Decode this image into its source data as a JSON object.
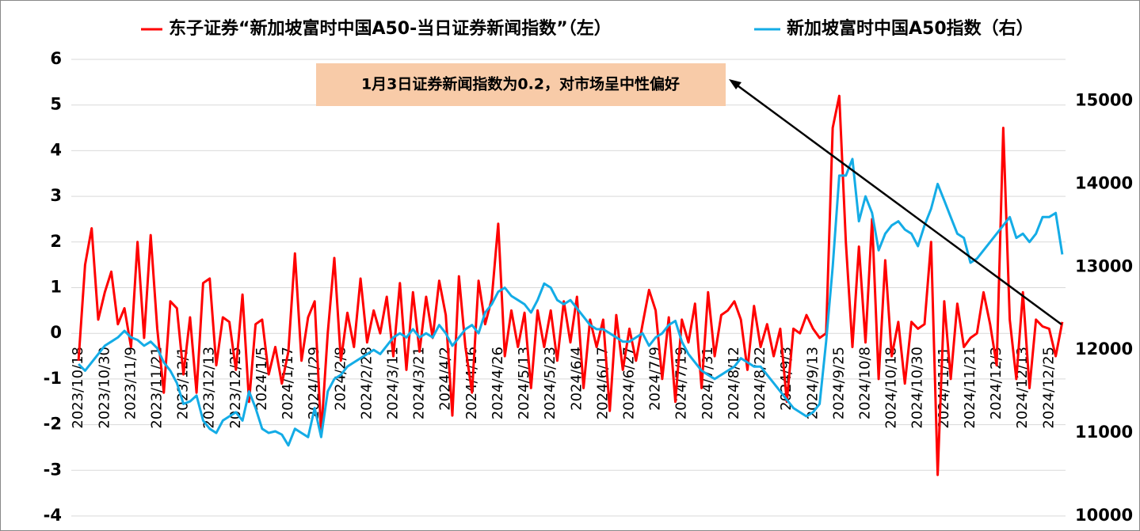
{
  "chart_data": {
    "type": "line",
    "annotation": "1月3日证券新闻指数为0.2，对市场呈中性偏好",
    "legend": "top",
    "grid": true,
    "categories": [
      "2023/10/18",
      null,
      null,
      null,
      "2023/10/30",
      null,
      null,
      null,
      "2023/11/9",
      null,
      null,
      null,
      "2023/11/21",
      null,
      null,
      null,
      "2023/12/1",
      null,
      null,
      null,
      "2023/12/13",
      null,
      null,
      null,
      "2023/12/25",
      null,
      null,
      null,
      "2024/1/5",
      null,
      null,
      null,
      "2024/1/17",
      null,
      null,
      null,
      "2024/1/29",
      null,
      null,
      null,
      "2024/2/8",
      null,
      null,
      null,
      "2024/2/28",
      null,
      null,
      null,
      "2024/3/11",
      null,
      null,
      null,
      "2024/3/21",
      null,
      null,
      null,
      "2024/4/2",
      null,
      null,
      null,
      "2024/4/16",
      null,
      null,
      null,
      "2024/4/26",
      null,
      null,
      null,
      "2024/5/13",
      null,
      null,
      null,
      "2024/5/23",
      null,
      null,
      null,
      "2024/6/4",
      null,
      null,
      null,
      "2024/6/17",
      null,
      null,
      null,
      "2024/6/27",
      null,
      null,
      null,
      "2024/7/9",
      null,
      null,
      null,
      "2024/7/19",
      null,
      null,
      null,
      "2024/7/31",
      null,
      null,
      null,
      "2024/8/12",
      null,
      null,
      null,
      "2024/8/22",
      null,
      null,
      null,
      "2024/9/3",
      null,
      null,
      null,
      "2024/9/13",
      null,
      null,
      null,
      "2024/9/25",
      null,
      null,
      null,
      "2024/10/8",
      null,
      null,
      null,
      "2024/10/18",
      null,
      null,
      null,
      "2024/10/30",
      null,
      null,
      null,
      "2024/11/11",
      null,
      null,
      null,
      "2024/11/21",
      null,
      null,
      null,
      "2024/12/3",
      null,
      null,
      null,
      "2024/12/13",
      null,
      null,
      null,
      "2024/12/25",
      null,
      null
    ],
    "series": [
      {
        "name": "东子证券“新加坡富时中国A50-当日证券新闻指数”（左）",
        "color": "#ff0000",
        "axis": "y",
        "values": [
          -0.6,
          1.5,
          2.3,
          0.3,
          0.9,
          1.35,
          0.2,
          0.55,
          -0.3,
          2.0,
          -0.1,
          2.15,
          0.1,
          -1.3,
          0.7,
          0.55,
          -0.9,
          0.35,
          -1.3,
          1.1,
          1.2,
          -0.7,
          0.35,
          0.25,
          -0.8,
          0.85,
          -1.5,
          0.2,
          0.3,
          -0.9,
          -0.3,
          -1.1,
          -0.4,
          1.75,
          -0.6,
          0.35,
          0.7,
          -2.2,
          0.0,
          1.65,
          -0.6,
          0.45,
          -0.3,
          1.2,
          -0.2,
          0.5,
          0.0,
          0.8,
          -0.5,
          1.1,
          -0.8,
          0.9,
          -0.4,
          0.8,
          -0.1,
          1.15,
          0.4,
          -1.8,
          1.25,
          -0.3,
          -1.3,
          1.15,
          0.2,
          0.75,
          2.4,
          -0.5,
          0.5,
          -0.3,
          0.45,
          -1.2,
          0.5,
          -0.3,
          0.5,
          -0.6,
          0.7,
          -0.2,
          0.8,
          -1.2,
          0.3,
          -0.3,
          0.3,
          -1.7,
          0.4,
          -0.8,
          0.1,
          -0.6,
          0.2,
          0.95,
          0.5,
          -1.0,
          0.35,
          -1.5,
          0.3,
          -0.2,
          0.65,
          -1.2,
          0.9,
          -0.5,
          0.4,
          0.5,
          0.7,
          0.3,
          -0.8,
          0.6,
          -0.3,
          0.2,
          -0.5,
          0.1,
          -1.5,
          0.1,
          0.0,
          0.4,
          0.1,
          -0.1,
          0.0,
          4.5,
          5.2,
          2.0,
          -0.3,
          1.9,
          -0.2,
          2.5,
          -1.0,
          1.6,
          -0.5,
          0.25,
          -1.1,
          0.25,
          0.1,
          0.2,
          2.0,
          -3.1,
          0.7,
          -1.0,
          0.65,
          -0.3,
          -0.1,
          0.0,
          0.9,
          0.2,
          -0.7,
          4.5,
          0.3,
          -1.0,
          0.9,
          -1.2,
          0.3,
          0.15,
          0.1,
          -0.5,
          0.25
        ]
      },
      {
        "name": "新加坡富时中国A50指数（右）",
        "color": "#14ace6",
        "axis": "y2",
        "values": [
          11830,
          11750,
          11850,
          11950,
          12050,
          12100,
          12150,
          12230,
          12150,
          12120,
          12050,
          12100,
          12020,
          11850,
          11750,
          11600,
          11350,
          11380,
          11450,
          11150,
          11050,
          11000,
          11150,
          11200,
          11250,
          11150,
          11500,
          11300,
          11050,
          11000,
          11020,
          10980,
          10850,
          11050,
          11000,
          10950,
          11300,
          10950,
          11500,
          11650,
          11700,
          11800,
          11850,
          11900,
          11950,
          12000,
          11950,
          12050,
          12150,
          12200,
          12150,
          12250,
          12150,
          12200,
          12150,
          12300,
          12200,
          12050,
          12150,
          12250,
          12300,
          12200,
          12450,
          12550,
          12700,
          12750,
          12650,
          12600,
          12550,
          12450,
          12600,
          12800,
          12750,
          12600,
          12550,
          12600,
          12500,
          12400,
          12300,
          12250,
          12250,
          12200,
          12150,
          12100,
          12100,
          12150,
          12200,
          12050,
          12150,
          12200,
          12300,
          12350,
          12100,
          11950,
          11850,
          11750,
          11700,
          11650,
          11700,
          11750,
          11800,
          11900,
          11850,
          11800,
          11800,
          11700,
          11600,
          11500,
          11400,
          11300,
          11250,
          11200,
          11250,
          11350,
          12100,
          13000,
          14100,
          14100,
          14300,
          13550,
          13850,
          13650,
          13200,
          13400,
          13500,
          13550,
          13450,
          13400,
          13250,
          13500,
          13700,
          14000,
          13800,
          13600,
          13400,
          13350,
          13050,
          13100,
          13200,
          13300,
          13400,
          13500,
          13600,
          13350,
          13400,
          13300,
          13400,
          13600,
          13600,
          13650,
          13150
        ]
      }
    ],
    "ylim": [
      -4,
      6
    ],
    "yticks": [
      -4,
      -3,
      -2,
      -1,
      0,
      1,
      2,
      3,
      4,
      5,
      6
    ],
    "y2lim": [
      10000,
      15500
    ],
    "y2ticks": [
      10000,
      11000,
      12000,
      13000,
      14000,
      15000
    ]
  }
}
